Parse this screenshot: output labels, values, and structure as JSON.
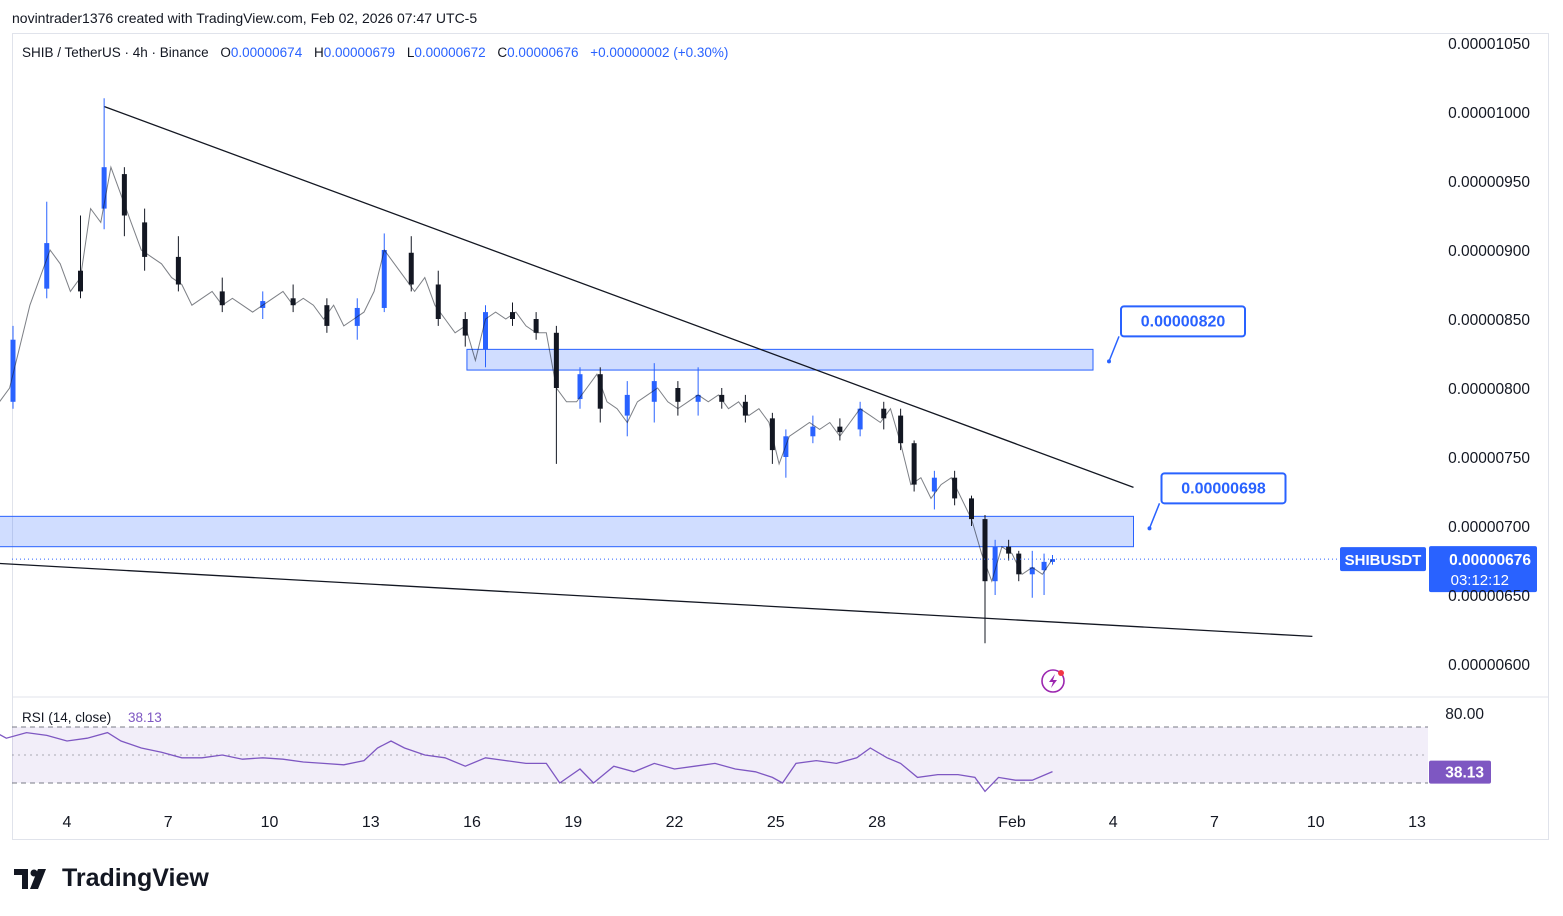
{
  "header": {
    "attribution": "novintrader1376 created with TradingView.com, Feb 02, 2026 07:47 UTC-5"
  },
  "legend": {
    "symbol": "SHIB / TetherUS · 4h · Binance",
    "o_label": "O",
    "o": "0.00000674",
    "h_label": "H",
    "h": "0.00000679",
    "l_label": "L",
    "l": "0.00000672",
    "c_label": "C",
    "c": "0.00000676",
    "change": "+0.00000002 (+0.30%)"
  },
  "brand": {
    "name": "TradingView"
  },
  "colors": {
    "up": "#2962ff",
    "down": "#131722",
    "zone": "#2962ff",
    "rsi": "#7e57c2",
    "accent": "#2962ff"
  },
  "chart_data": [
    {
      "type": "candlestick",
      "price_axis": {
        "ticks": [
          "0.00001050",
          "0.00001000",
          "0.00000950",
          "0.00000900",
          "0.00000850",
          "0.00000800",
          "0.00000750",
          "0.00000700",
          "0.00000650",
          "0.00000600"
        ],
        "range": [
          5.85e-06,
          1.06e-05
        ]
      },
      "time_axis": {
        "ticks": [
          {
            "label": "4",
            "day": 4
          },
          {
            "label": "7",
            "day": 7
          },
          {
            "label": "10",
            "day": 10
          },
          {
            "label": "13",
            "day": 13
          },
          {
            "label": "16",
            "day": 16
          },
          {
            "label": "19",
            "day": 19
          },
          {
            "label": "22",
            "day": 22
          },
          {
            "label": "25",
            "day": 25
          },
          {
            "label": "28",
            "day": 28
          },
          {
            "label": "Feb",
            "day": 32
          },
          {
            "label": "4",
            "day": 35
          },
          {
            "label": "7",
            "day": 38
          },
          {
            "label": "10",
            "day": 41
          },
          {
            "label": "13",
            "day": 44
          }
        ],
        "unit": "day (Jan 2026; Feb 1 = 32)"
      },
      "close_path": [
        [
          1.75,
          8.1e-06
        ],
        [
          2.0,
          7.9e-06
        ],
        [
          2.3,
          8e-06
        ],
        [
          2.6,
          8.3e-06
        ],
        [
          2.9,
          8.6e-06
        ],
        [
          3.2,
          8.8e-06
        ],
        [
          3.5,
          9e-06
        ],
        [
          3.8,
          8.9e-06
        ],
        [
          4.1,
          8.7e-06
        ],
        [
          4.4,
          8.8e-06
        ],
        [
          4.7,
          9.3e-06
        ],
        [
          5.0,
          9.2e-06
        ],
        [
          5.3,
          9.6e-06
        ],
        [
          5.6,
          9.4e-06
        ],
        [
          5.9,
          9.2e-06
        ],
        [
          6.2,
          9e-06
        ],
        [
          6.5,
          8.95e-06
        ],
        [
          6.8,
          8.9e-06
        ],
        [
          7.1,
          8.8e-06
        ],
        [
          7.4,
          8.75e-06
        ],
        [
          7.7,
          8.6e-06
        ],
        [
          8.0,
          8.65e-06
        ],
        [
          8.3,
          8.7e-06
        ],
        [
          8.6,
          8.6e-06
        ],
        [
          8.9,
          8.65e-06
        ],
        [
          9.2,
          8.6e-06
        ],
        [
          9.5,
          8.55e-06
        ],
        [
          9.8,
          8.6e-06
        ],
        [
          10.1,
          8.65e-06
        ],
        [
          10.4,
          8.7e-06
        ],
        [
          10.7,
          8.6e-06
        ],
        [
          11.0,
          8.65e-06
        ],
        [
          11.3,
          8.6e-06
        ],
        [
          11.6,
          8.5e-06
        ],
        [
          11.9,
          8.6e-06
        ],
        [
          12.2,
          8.45e-06
        ],
        [
          12.5,
          8.5e-06
        ],
        [
          12.8,
          8.55e-06
        ],
        [
          13.1,
          8.7e-06
        ],
        [
          13.4,
          9e-06
        ],
        [
          13.7,
          8.9e-06
        ],
        [
          14.0,
          8.8e-06
        ],
        [
          14.3,
          8.7e-06
        ],
        [
          14.6,
          8.8e-06
        ],
        [
          14.9,
          8.6e-06
        ],
        [
          15.2,
          8.5e-06
        ],
        [
          15.5,
          8.4e-06
        ],
        [
          15.8,
          8.45e-06
        ],
        [
          16.1,
          8.2e-06
        ],
        [
          16.4,
          8.5e-06
        ],
        [
          16.7,
          8.55e-06
        ],
        [
          17.0,
          8.5e-06
        ],
        [
          17.3,
          8.55e-06
        ],
        [
          17.6,
          8.45e-06
        ],
        [
          17.9,
          8.4e-06
        ],
        [
          18.2,
          8.4e-06
        ],
        [
          18.5,
          8e-06
        ],
        [
          18.8,
          7.9e-06
        ],
        [
          19.1,
          7.9e-06
        ],
        [
          19.4,
          8e-06
        ],
        [
          19.7,
          8.1e-06
        ],
        [
          20.0,
          7.9e-06
        ],
        [
          20.3,
          7.85e-06
        ],
        [
          20.6,
          7.75e-06
        ],
        [
          20.9,
          7.9e-06
        ],
        [
          21.2,
          7.95e-06
        ],
        [
          21.5,
          8e-06
        ],
        [
          21.8,
          7.9e-06
        ],
        [
          22.1,
          7.85e-06
        ],
        [
          22.4,
          7.9e-06
        ],
        [
          22.7,
          7.95e-06
        ],
        [
          23.0,
          7.9e-06
        ],
        [
          23.3,
          7.95e-06
        ],
        [
          23.6,
          7.85e-06
        ],
        [
          23.9,
          7.9e-06
        ],
        [
          24.2,
          7.8e-06
        ],
        [
          24.5,
          7.85e-06
        ],
        [
          24.8,
          7.75e-06
        ],
        [
          25.1,
          7.45e-06
        ],
        [
          25.4,
          7.65e-06
        ],
        [
          25.7,
          7.7e-06
        ],
        [
          26.0,
          7.75e-06
        ],
        [
          26.3,
          7.7e-06
        ],
        [
          26.6,
          7.75e-06
        ],
        [
          26.9,
          7.65e-06
        ],
        [
          27.2,
          7.75e-06
        ],
        [
          27.5,
          7.85e-06
        ],
        [
          27.8,
          7.8e-06
        ],
        [
          28.1,
          7.75e-06
        ],
        [
          28.4,
          7.85e-06
        ],
        [
          28.7,
          7.6e-06
        ],
        [
          29.0,
          7.3e-06
        ],
        [
          29.3,
          7.35e-06
        ],
        [
          29.6,
          7.2e-06
        ],
        [
          29.9,
          7.3e-06
        ],
        [
          30.2,
          7.35e-06
        ],
        [
          30.5,
          7.2e-06
        ],
        [
          30.8,
          7.05e-06
        ],
        [
          31.1,
          6.8e-06
        ],
        [
          31.4,
          6.6e-06
        ],
        [
          31.7,
          6.85e-06
        ],
        [
          32.0,
          6.8e-06
        ],
        [
          32.3,
          6.65e-06
        ],
        [
          32.6,
          6.7e-06
        ],
        [
          32.9,
          6.65e-06
        ],
        [
          33.2,
          6.76e-06
        ]
      ],
      "candles": [
        [
          1.75,
          8.12e-06,
          8.25e-06,
          8.08e-06,
          8.18e-06
        ],
        [
          2.4,
          7.9e-06,
          8.45e-06,
          7.85e-06,
          8.35e-06
        ],
        [
          3.4,
          8.72e-06,
          9.35e-06,
          8.65e-06,
          9.05e-06
        ],
        [
          4.4,
          8.85e-06,
          9.25e-06,
          8.65e-06,
          8.7e-06
        ],
        [
          5.1,
          9.3e-06,
          1.01e-05,
          9.15e-06,
          9.6e-06
        ],
        [
          5.7,
          9.55e-06,
          9.6e-06,
          9.1e-06,
          9.25e-06
        ],
        [
          6.3,
          9.2e-06,
          9.3e-06,
          8.85e-06,
          8.95e-06
        ],
        [
          7.3,
          8.95e-06,
          9.1e-06,
          8.7e-06,
          8.75e-06
        ],
        [
          8.6,
          8.7e-06,
          8.8e-06,
          8.55e-06,
          8.6e-06
        ],
        [
          9.8,
          8.58e-06,
          8.7e-06,
          8.5e-06,
          8.63e-06
        ],
        [
          10.7,
          8.65e-06,
          8.75e-06,
          8.55e-06,
          8.6e-06
        ],
        [
          11.7,
          8.6e-06,
          8.65e-06,
          8.4e-06,
          8.45e-06
        ],
        [
          12.6,
          8.45e-06,
          8.65e-06,
          8.35e-06,
          8.58e-06
        ],
        [
          13.4,
          8.58e-06,
          9.12e-06,
          8.55e-06,
          9e-06
        ],
        [
          14.2,
          8.98e-06,
          9.1e-06,
          8.7e-06,
          8.75e-06
        ],
        [
          15.0,
          8.75e-06,
          8.85e-06,
          8.45e-06,
          8.5e-06
        ],
        [
          15.8,
          8.5e-06,
          8.55e-06,
          8.3e-06,
          8.38e-06
        ],
        [
          16.4,
          8.28e-06,
          8.6e-06,
          8.15e-06,
          8.55e-06
        ],
        [
          17.2,
          8.55e-06,
          8.62e-06,
          8.45e-06,
          8.5e-06
        ],
        [
          17.9,
          8.5e-06,
          8.55e-06,
          8.35e-06,
          8.4e-06
        ],
        [
          18.5,
          8.4e-06,
          8.45e-06,
          7.45e-06,
          8e-06
        ],
        [
          19.2,
          7.92e-06,
          8.15e-06,
          7.85e-06,
          8.1e-06
        ],
        [
          19.8,
          8.1e-06,
          8.15e-06,
          7.75e-06,
          7.85e-06
        ],
        [
          20.6,
          7.8e-06,
          8.05e-06,
          7.65e-06,
          7.95e-06
        ],
        [
          21.4,
          7.9e-06,
          8.18e-06,
          7.75e-06,
          8.05e-06
        ],
        [
          22.1,
          8e-06,
          8.05e-06,
          7.8e-06,
          7.9e-06
        ],
        [
          22.7,
          7.9e-06,
          8.15e-06,
          7.8e-06,
          7.95e-06
        ],
        [
          23.4,
          7.95e-06,
          8e-06,
          7.85e-06,
          7.9e-06
        ],
        [
          24.1,
          7.9e-06,
          7.95e-06,
          7.75e-06,
          7.8e-06
        ],
        [
          24.9,
          7.78e-06,
          7.82e-06,
          7.45e-06,
          7.55e-06
        ],
        [
          25.3,
          7.5e-06,
          7.7e-06,
          7.35e-06,
          7.65e-06
        ],
        [
          26.1,
          7.65e-06,
          7.8e-06,
          7.6e-06,
          7.72e-06
        ],
        [
          26.9,
          7.72e-06,
          7.78e-06,
          7.62e-06,
          7.68e-06
        ],
        [
          27.5,
          7.7e-06,
          7.9e-06,
          7.65e-06,
          7.85e-06
        ],
        [
          28.2,
          7.85e-06,
          7.9e-06,
          7.7e-06,
          7.78e-06
        ],
        [
          28.7,
          7.8e-06,
          7.85e-06,
          7.55e-06,
          7.6e-06
        ],
        [
          29.1,
          7.6e-06,
          7.62e-06,
          7.25e-06,
          7.3e-06
        ],
        [
          29.7,
          7.25e-06,
          7.4e-06,
          7.12e-06,
          7.35e-06
        ],
        [
          30.3,
          7.35e-06,
          7.4e-06,
          7.15e-06,
          7.2e-06
        ],
        [
          30.8,
          7.2e-06,
          7.22e-06,
          7e-06,
          7.05e-06
        ],
        [
          31.2,
          7.05e-06,
          7.08e-06,
          6.15e-06,
          6.6e-06
        ],
        [
          31.5,
          6.6e-06,
          6.9e-06,
          6.5e-06,
          6.85e-06
        ],
        [
          31.9,
          6.85e-06,
          6.9e-06,
          6.75e-06,
          6.8e-06
        ],
        [
          32.2,
          6.8e-06,
          6.82e-06,
          6.6e-06,
          6.65e-06
        ],
        [
          32.6,
          6.65e-06,
          6.82e-06,
          6.48e-06,
          6.7e-06
        ],
        [
          32.95,
          6.68e-06,
          6.8e-06,
          6.5e-06,
          6.74e-06
        ],
        [
          33.2,
          6.74e-06,
          6.79e-06,
          6.72e-06,
          6.76e-06
        ]
      ],
      "zones": [
        {
          "from_day": 15.85,
          "to_day": 34.4,
          "low": 8.13e-06,
          "high": 8.28e-06,
          "label": "0.00000820"
        },
        {
          "from_day": 0.4,
          "to_day": 35.6,
          "low": 6.85e-06,
          "high": 7.07e-06,
          "label": "0.00000698"
        }
      ],
      "trendlines": [
        {
          "from": [
            5.1,
            1.004e-05
          ],
          "to": [
            35.6,
            7.28e-06
          ]
        },
        {
          "from": [
            0.4,
            6.75e-06
          ],
          "to": [
            40.9,
            6.2e-06
          ]
        }
      ],
      "last_price": {
        "symbol": "SHIBUSDT",
        "price": "0.00000676",
        "countdown": "03:12:12",
        "value": 6.76e-06
      }
    },
    {
      "type": "line",
      "indicator": "RSI (14, close)",
      "current": "38.13",
      "axis_ticks": [
        "80.00"
      ],
      "bands": {
        "upper": 70,
        "middle": 50,
        "lower": 30
      },
      "range": [
        20,
        90
      ],
      "series": [
        [
          0.4,
          65
        ],
        [
          1.0,
          68
        ],
        [
          1.6,
          70
        ],
        [
          2.2,
          62
        ],
        [
          2.8,
          66
        ],
        [
          3.4,
          64
        ],
        [
          4.0,
          60
        ],
        [
          4.6,
          62
        ],
        [
          5.2,
          66
        ],
        [
          5.6,
          60
        ],
        [
          6.2,
          55
        ],
        [
          6.8,
          52
        ],
        [
          7.4,
          48
        ],
        [
          8.0,
          48
        ],
        [
          8.6,
          50
        ],
        [
          9.2,
          47
        ],
        [
          9.8,
          48
        ],
        [
          10.4,
          47
        ],
        [
          11.0,
          45
        ],
        [
          11.6,
          44
        ],
        [
          12.2,
          43
        ],
        [
          12.8,
          46
        ],
        [
          13.2,
          55
        ],
        [
          13.6,
          60
        ],
        [
          14.0,
          55
        ],
        [
          14.6,
          50
        ],
        [
          15.2,
          48
        ],
        [
          15.8,
          42
        ],
        [
          16.4,
          48
        ],
        [
          17.0,
          46
        ],
        [
          17.6,
          44
        ],
        [
          18.2,
          44
        ],
        [
          18.6,
          30
        ],
        [
          19.2,
          40
        ],
        [
          19.6,
          30
        ],
        [
          20.2,
          42
        ],
        [
          20.8,
          38
        ],
        [
          21.4,
          44
        ],
        [
          22.0,
          40
        ],
        [
          22.6,
          42
        ],
        [
          23.2,
          44
        ],
        [
          23.8,
          40
        ],
        [
          24.4,
          38
        ],
        [
          24.9,
          34
        ],
        [
          25.2,
          30
        ],
        [
          25.6,
          44
        ],
        [
          26.2,
          46
        ],
        [
          26.8,
          44
        ],
        [
          27.4,
          48
        ],
        [
          27.8,
          55
        ],
        [
          28.3,
          48
        ],
        [
          28.7,
          44
        ],
        [
          29.2,
          34
        ],
        [
          29.8,
          36
        ],
        [
          30.4,
          36
        ],
        [
          30.9,
          34
        ],
        [
          31.2,
          24
        ],
        [
          31.6,
          34
        ],
        [
          32.1,
          32
        ],
        [
          32.6,
          32
        ],
        [
          33.2,
          38.13
        ]
      ]
    }
  ]
}
